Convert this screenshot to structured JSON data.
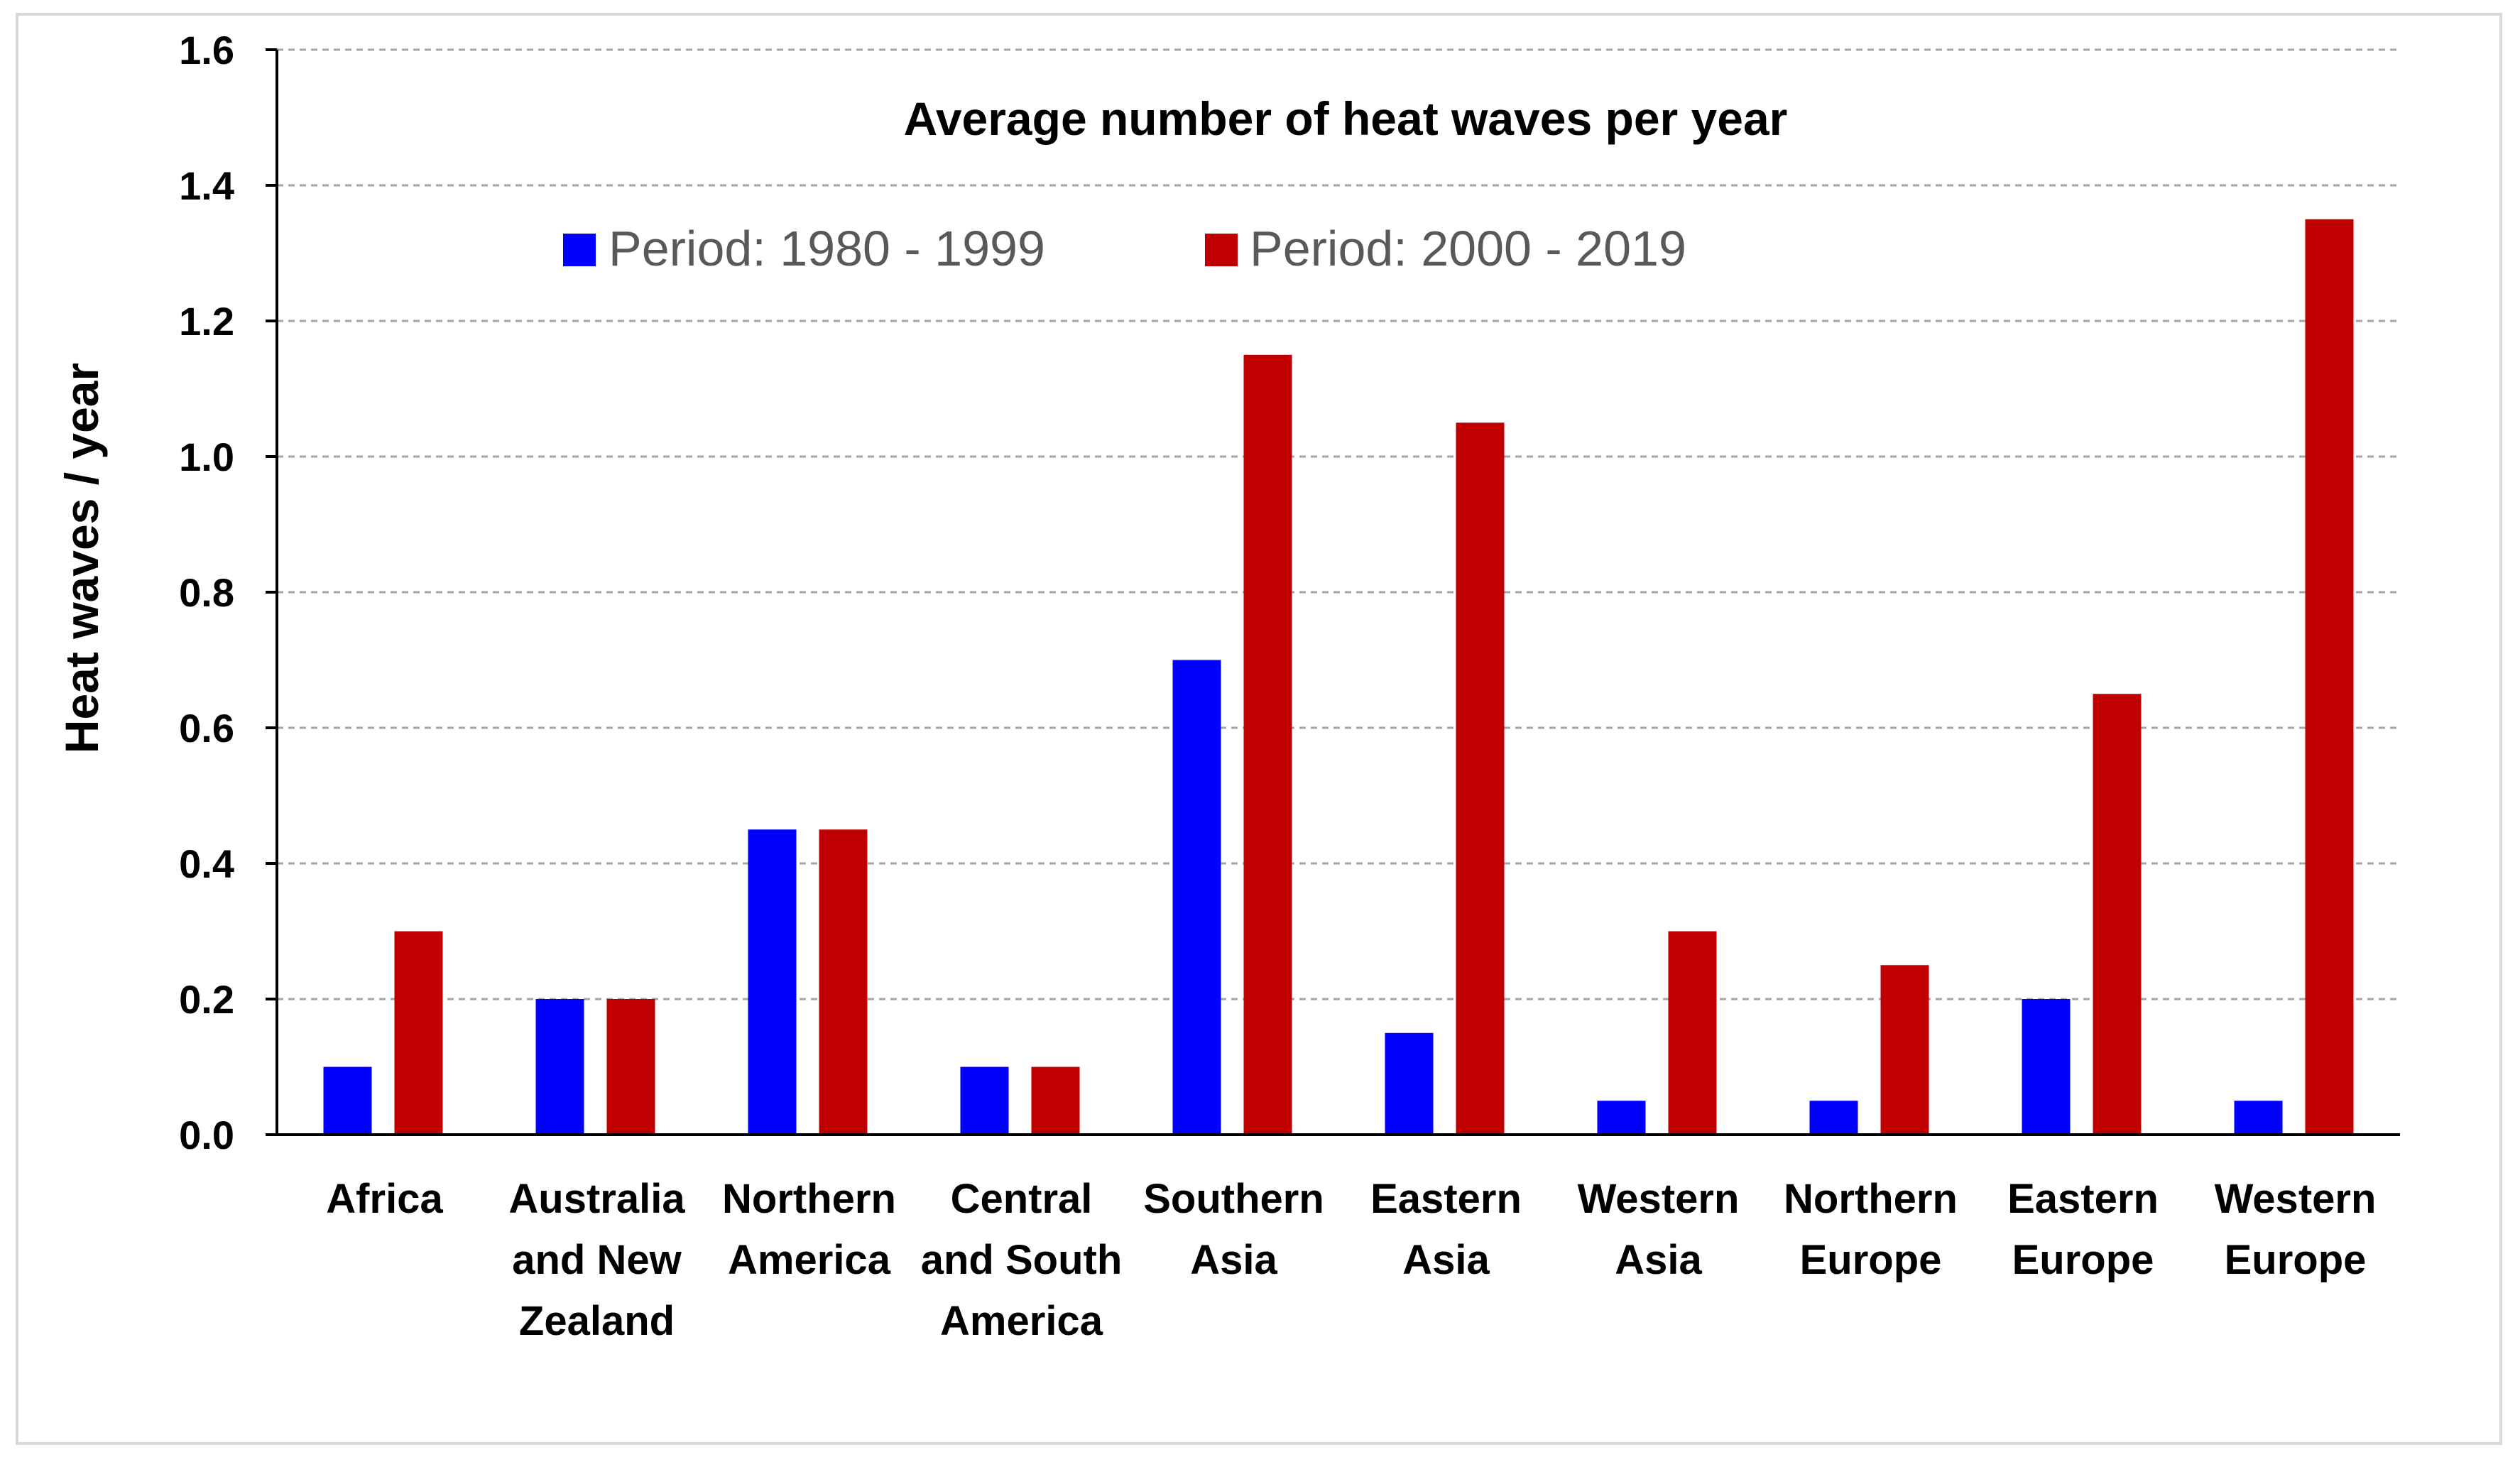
{
  "chart_data": {
    "type": "bar",
    "title": "Average number of heat waves per year",
    "xlabel": "",
    "ylabel": "Heat waves / year",
    "ylim": [
      0,
      1.6
    ],
    "yticks": [
      "0.0",
      "0.2",
      "0.4",
      "0.6",
      "0.8",
      "1.0",
      "1.2",
      "1.4",
      "1.6"
    ],
    "grid": true,
    "legend_position": "top",
    "categories": [
      [
        "Africa"
      ],
      [
        "Australia",
        "and New",
        "Zealand"
      ],
      [
        "Northern",
        "America"
      ],
      [
        "Central",
        "and South",
        "America"
      ],
      [
        "Southern",
        "Asia"
      ],
      [
        "Eastern",
        "Asia"
      ],
      [
        "Western",
        "Asia"
      ],
      [
        "Northern",
        "Europe"
      ],
      [
        "Eastern",
        "Europe"
      ],
      [
        "Western",
        "Europe"
      ]
    ],
    "series": [
      {
        "name": "Period: 1980 - 1999",
        "color": "#0000ff",
        "values": [
          0.1,
          0.2,
          0.45,
          0.1,
          0.7,
          0.15,
          0.05,
          0.05,
          0.2,
          0.05
        ]
      },
      {
        "name": "Period: 2000 - 2019",
        "color": "#c00000",
        "values": [
          0.3,
          0.2,
          0.45,
          0.1,
          1.15,
          1.05,
          0.3,
          0.25,
          0.65,
          1.35
        ]
      }
    ]
  }
}
